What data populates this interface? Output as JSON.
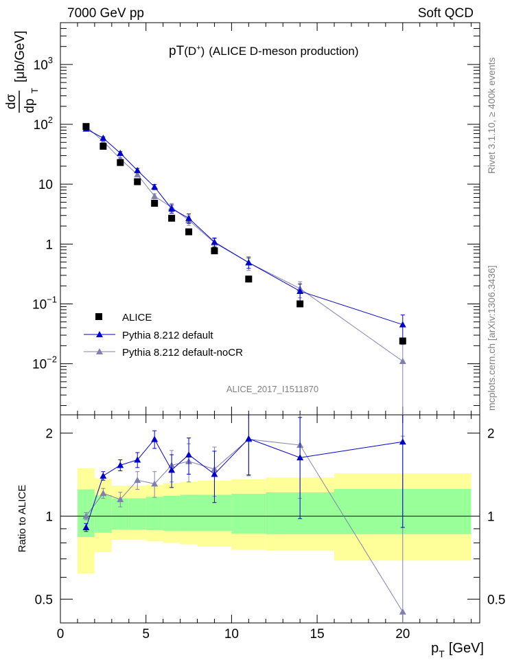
{
  "header": {
    "left": "7000 GeV pp",
    "right": "Soft QCD"
  },
  "side": {
    "rivet": "Rivet 3.1.10, ≥ 400k events",
    "mcplots": "mcplots.cern.ch [arXiv:1306.3436]"
  },
  "colors": {
    "alice": "#000000",
    "default": "#0000cc",
    "nocr": "#8080b0",
    "band_stat": "#99ff99",
    "band_total": "#ffff99"
  },
  "chart_data": [
    {
      "type": "scatter",
      "panel": "main",
      "title_prefix": "pT",
      "title_particle": "(D",
      "title_sup": "+",
      "title_close": ")",
      "title_rest": "(ALICE D-meson production)",
      "ylabel_num": "dσ",
      "ylabel_den": "dp",
      "ylabel_sub": "T",
      "ylabel_units": "[μb/GeV]",
      "yscale": "log",
      "xlim": [
        0,
        24.5
      ],
      "ylim": [
        0.0014,
        5000
      ],
      "watermark": "ALICE_2017_I1511870",
      "ytick_labels": [
        {
          "value": 0.01,
          "base": "10",
          "exp": "−2"
        },
        {
          "value": 0.1,
          "base": "10",
          "exp": "−1"
        },
        {
          "value": 1,
          "base": "1",
          "exp": ""
        },
        {
          "value": 10,
          "base": "10",
          "exp": ""
        },
        {
          "value": 100,
          "base": "10",
          "exp": "2"
        },
        {
          "value": 1000,
          "base": "10",
          "exp": "3"
        }
      ],
      "legend": {
        "position": "bottom-left",
        "entries": [
          "ALICE",
          "Pythia 8.212 default",
          "Pythia 8.212 default-noCR"
        ]
      },
      "series": [
        {
          "name": "ALICE",
          "marker": "square",
          "x": [
            1.5,
            2.5,
            3.5,
            4.5,
            5.5,
            6.5,
            7.5,
            9,
            11,
            14,
            20
          ],
          "y": [
            92,
            43,
            23,
            11,
            4.8,
            2.7,
            1.6,
            0.77,
            0.26,
            0.1,
            0.024
          ]
        },
        {
          "name": "Pythia 8.212 default",
          "marker": "triangle",
          "x": [
            1.5,
            2.5,
            3.5,
            4.5,
            5.5,
            6.5,
            7.5,
            9,
            11,
            14,
            20
          ],
          "y": [
            84,
            59,
            33,
            17,
            9,
            3.9,
            2.7,
            1.08,
            0.49,
            0.163,
            0.045
          ],
          "err": [
            0.05,
            0.05,
            0.06,
            0.08,
            0.1,
            0.16,
            0.18,
            0.17,
            0.2,
            0.32,
            0.45
          ]
        },
        {
          "name": "Pythia 8.212 default-noCR",
          "marker": "triangle",
          "x": [
            1.5,
            2.5,
            3.5,
            4.5,
            5.5,
            6.5,
            7.5,
            9,
            11,
            14,
            20
          ],
          "y": [
            92,
            52,
            26.5,
            14.5,
            6.3,
            4.1,
            2.5,
            1.05,
            0.49,
            0.18,
            0.011
          ],
          "err": [
            0.04,
            0.05,
            0.06,
            0.08,
            0.1,
            0.16,
            0.18,
            0.17,
            0.26,
            0.3,
            0.9
          ]
        }
      ]
    },
    {
      "type": "scatter",
      "panel": "ratio",
      "ylabel": "Ratio to ALICE",
      "xlabel_main": "p",
      "xlabel_sub": "T",
      "xlabel_units": "[GeV]",
      "yscale": "log",
      "xlim": [
        0,
        24.5
      ],
      "ylim": [
        0.41,
        2.33
      ],
      "xtick_labels": [
        "0",
        "5",
        "10",
        "15",
        "20"
      ],
      "ytick_labels": [
        "0.5",
        "1",
        "2"
      ],
      "ytick_values": [
        0.5,
        1,
        2
      ],
      "bands": {
        "edges": [
          1,
          2,
          3,
          4,
          5,
          6,
          7,
          8,
          10,
          12,
          16,
          24
        ],
        "stat_low": [
          0.84,
          0.87,
          0.895,
          0.895,
          0.89,
          0.885,
          0.885,
          0.885,
          0.865,
          0.86,
          0.86
        ],
        "stat_high": [
          1.25,
          1.19,
          1.16,
          1.16,
          1.175,
          1.185,
          1.195,
          1.195,
          1.205,
          1.22,
          1.255
        ],
        "total_low": [
          0.62,
          0.74,
          0.82,
          0.82,
          0.81,
          0.8,
          0.79,
          0.775,
          0.755,
          0.75,
          0.69
        ],
        "total_high": [
          1.49,
          1.37,
          1.29,
          1.29,
          1.3,
          1.32,
          1.33,
          1.345,
          1.36,
          1.38,
          1.43
        ]
      },
      "series": [
        {
          "name": "Pythia 8.212 default",
          "x": [
            1.5,
            2.5,
            3.5,
            4.5,
            5.5,
            6.5,
            7.5,
            9,
            11,
            14,
            20
          ],
          "y": [
            0.91,
            1.4,
            1.53,
            1.6,
            1.9,
            1.47,
            1.67,
            1.42,
            1.91,
            1.63,
            1.86
          ],
          "err_low": [
            0.03,
            0.05,
            0.07,
            0.1,
            0.14,
            0.2,
            0.25,
            0.3,
            0.5,
            0.65,
            0.95
          ],
          "err_high": [
            0.03,
            0.05,
            0.07,
            0.1,
            0.14,
            0.2,
            0.25,
            0.3,
            0.5,
            0.65,
            0.95
          ]
        },
        {
          "name": "Pythia 8.212 default-noCR",
          "x": [
            1.5,
            2.5,
            3.5,
            4.5,
            5.5,
            6.5,
            7.5,
            9,
            11,
            14,
            20
          ],
          "y": [
            1.0,
            1.21,
            1.15,
            1.35,
            1.31,
            1.53,
            1.58,
            1.48,
            1.9,
            1.81,
            0.45
          ],
          "err_low": [
            0.03,
            0.05,
            0.07,
            0.1,
            0.14,
            0.2,
            0.25,
            0.3,
            0.5,
            0.65,
            0.4
          ],
          "err_high": [
            0.03,
            0.05,
            0.07,
            0.1,
            0.14,
            0.2,
            0.25,
            0.3,
            0.5,
            0.65,
            1.5
          ]
        }
      ]
    }
  ]
}
